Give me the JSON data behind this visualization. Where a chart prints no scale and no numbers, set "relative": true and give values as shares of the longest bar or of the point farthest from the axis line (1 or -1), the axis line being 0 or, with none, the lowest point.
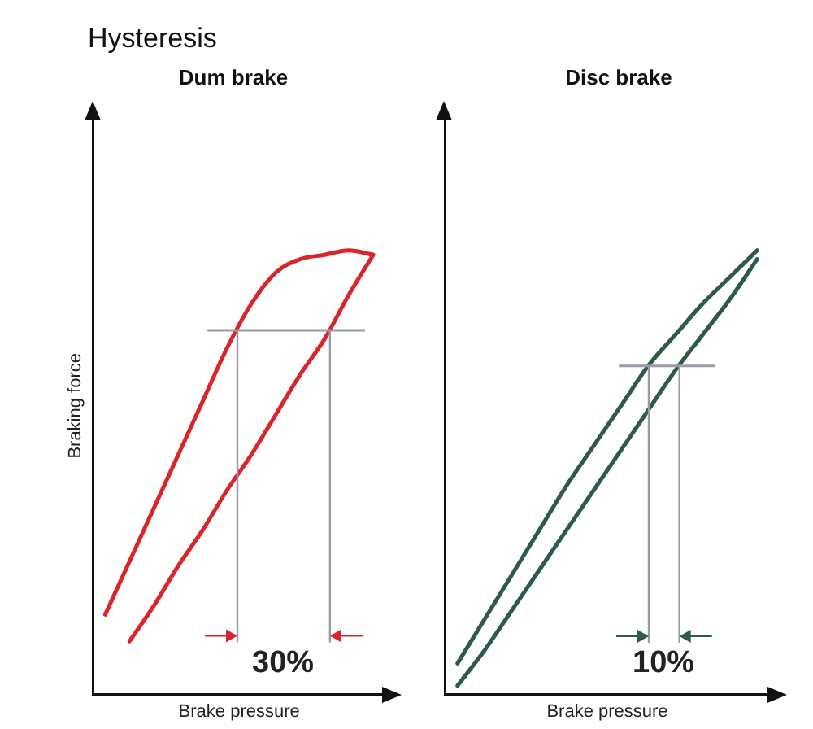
{
  "chart_data": [
    {
      "type": "line",
      "title": "Hysteresis",
      "subtitle": "Dum brake",
      "xlabel": "Brake pressure",
      "ylabel": "Braking force",
      "relative": true,
      "categories": [
        null,
        null,
        null,
        null,
        null,
        null,
        null,
        null,
        null,
        null,
        null,
        null
      ],
      "series": [
        {
          "color": "#d9262b",
          "values": [
            0.18,
            0.3,
            0.42,
            0.54,
            0.66,
            0.78,
            0.88,
            0.95,
            0.98,
            0.99,
            1,
            0.99
          ]
        },
        {
          "color": "#d9262b",
          "values": [
            null,
            0.12,
            0.2,
            0.29,
            0.37,
            0.46,
            0.54,
            0.63,
            0.72,
            0.8,
            0.9,
            0.99
          ]
        }
      ],
      "ref_lines": [
        {
          "axis": "y",
          "value": 0.82,
          "color": "#9a9aa8"
        }
      ],
      "annotations": [
        "30%"
      ],
      "grid": false,
      "legend": false,
      "marker": "none",
      "line_style": "solid",
      "tick_labels": false
    },
    {
      "type": "line",
      "subtitle": "Disc brake",
      "xlabel": "Brake pressure",
      "relative": true,
      "categories": [
        null,
        null,
        null,
        null,
        null,
        null,
        null,
        null,
        null,
        null,
        null,
        null
      ],
      "series": [
        {
          "color": "#2f5a45",
          "values": [
            0.07,
            0.17,
            0.27,
            0.37,
            0.47,
            0.56,
            0.65,
            0.74,
            0.81,
            0.88,
            0.94,
            1
          ]
        },
        {
          "color": "#2f5a45",
          "values": [
            0.02,
            0.1,
            0.19,
            0.28,
            0.37,
            0.46,
            0.55,
            0.64,
            0.73,
            0.81,
            0.89,
            0.98
          ]
        }
      ],
      "ref_lines": [
        {
          "axis": "y",
          "value": 0.74,
          "color": "#9a9aa8"
        }
      ],
      "annotations": [
        "10%"
      ],
      "grid": false,
      "legend": false,
      "marker": "none",
      "line_style": "solid",
      "tick_labels": false
    }
  ]
}
